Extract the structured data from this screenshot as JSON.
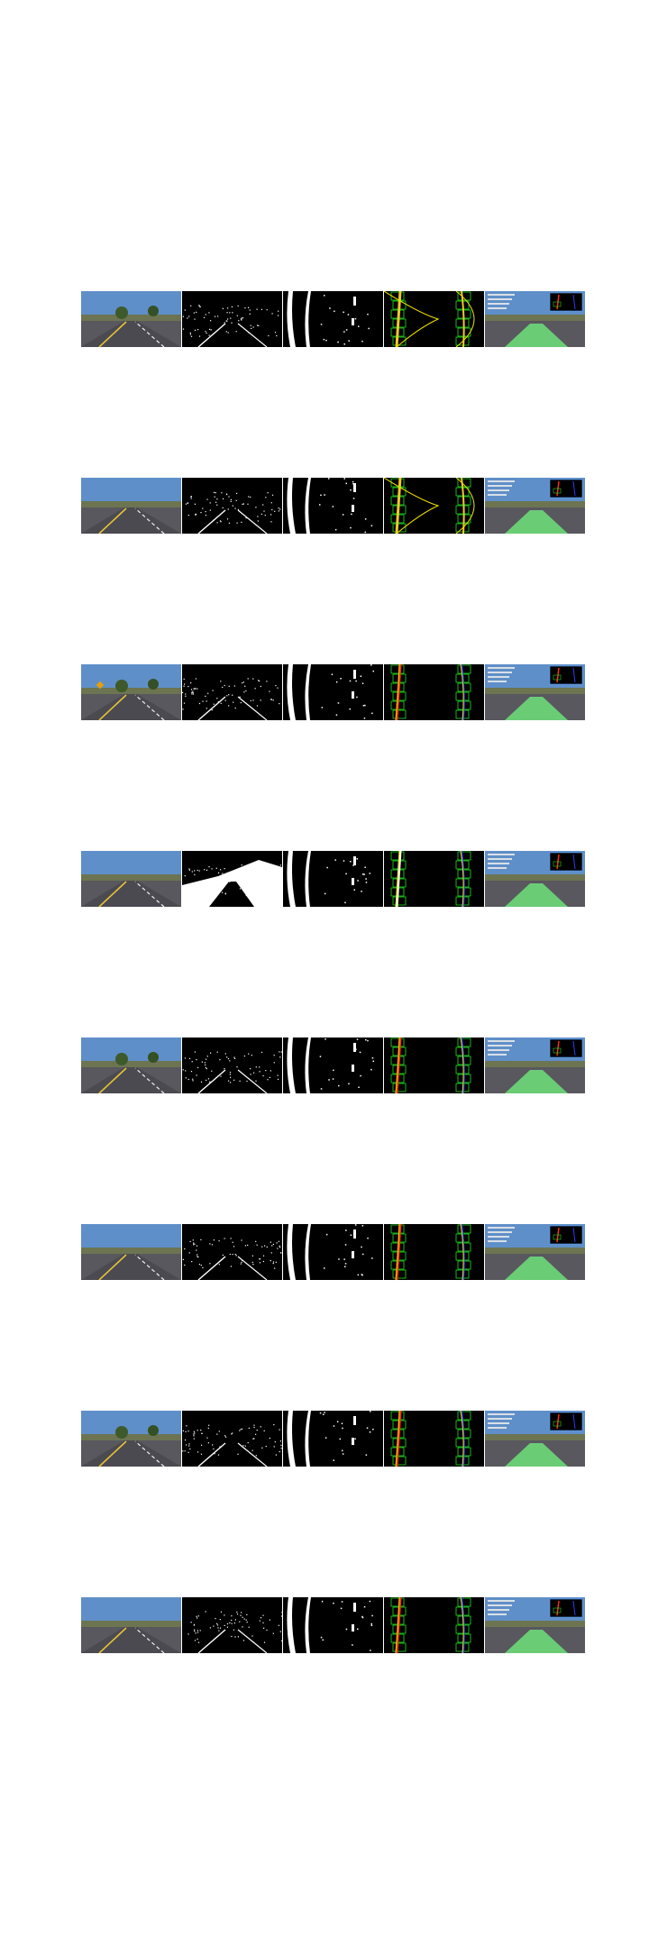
{
  "figure": {
    "rows": [
      {
        "id": "row-1",
        "left_lane_color": "#f0c828",
        "right_lane_color": "#f0c828",
        "fit": "curve"
      },
      {
        "id": "row-2",
        "left_lane_color": "#f0c828",
        "right_lane_color": "#f0c828",
        "fit": "curve"
      },
      {
        "id": "row-3",
        "left_lane_color": "#ff3010",
        "right_lane_color": "#2a3cff",
        "fit": "straight"
      },
      {
        "id": "row-4",
        "left_lane_color": "#ffffff",
        "right_lane_color": "#2a3cff",
        "fit": "straight"
      },
      {
        "id": "row-5",
        "left_lane_color": "#ff3010",
        "right_lane_color": "#2a3cff",
        "fit": "straight"
      },
      {
        "id": "row-6",
        "left_lane_color": "#ff3010",
        "right_lane_color": "#2a3cff",
        "fit": "straight"
      },
      {
        "id": "row-7",
        "left_lane_color": "#ff3010",
        "right_lane_color": "#2a3cff",
        "fit": "straight"
      },
      {
        "id": "row-8",
        "left_lane_color": "#ff3010",
        "right_lane_color": "#2a3cff",
        "fit": "straight"
      }
    ],
    "panels": [
      "original-road-image",
      "binary-threshold-image",
      "birdseye-binary-image",
      "sliding-window-fit",
      "lane-overlay-result"
    ],
    "colors": {
      "sky": "#5f8fc8",
      "road": "#58585e",
      "lane_fill": "#6fe07a",
      "window_box": "#22ff22",
      "fit_line": "#f2e200"
    }
  }
}
